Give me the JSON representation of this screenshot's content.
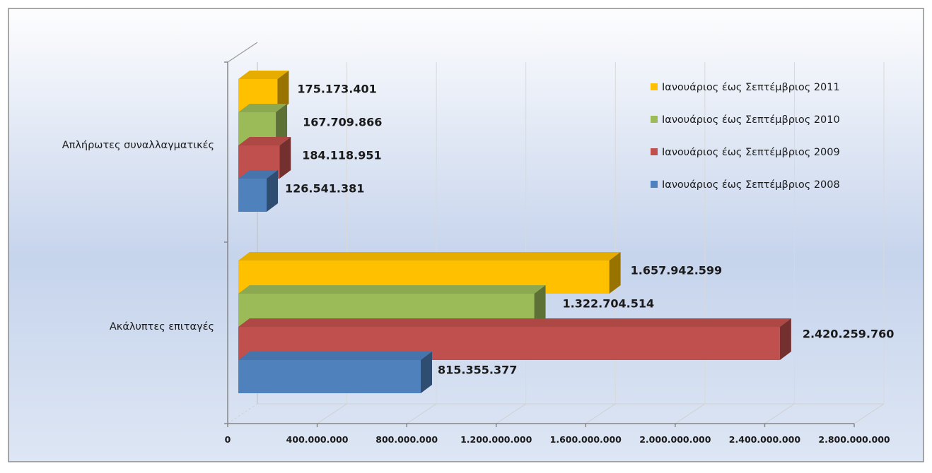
{
  "chart_data": {
    "type": "bar",
    "orientation": "horizontal",
    "three_d": true,
    "categories": [
      "Απλήρωτες συναλλαγματικές",
      "Ακάλυπτες επιταγές"
    ],
    "series": [
      {
        "name": "Ιανουάριος έως Σεπτέμβριος 2008",
        "color": "#4f81bd",
        "values": [
          126541381,
          815355377
        ],
        "labels": [
          "126.541.381",
          "815.355.377"
        ]
      },
      {
        "name": "Ιανουάριος έως Σεπτέμβριος 2009",
        "color": "#c0504d",
        "values": [
          184118951,
          2420259760
        ],
        "labels": [
          "184.118.951",
          "2.420.259.760"
        ]
      },
      {
        "name": "Ιανουάριος έως Σεπτέμβριος 2010",
        "color": "#9bbb59",
        "values": [
          167709866,
          1322704514
        ],
        "labels": [
          "167.709.866",
          "1.322.704.514"
        ]
      },
      {
        "name": "Ιανουάριος έως Σεπτέμβριος 2011",
        "color": "#ffc000",
        "values": [
          175173401,
          1657942599
        ],
        "labels": [
          "175.173.401",
          "1.657.942.599"
        ]
      }
    ],
    "xlim": [
      0,
      2800000000
    ],
    "x_ticks": [
      {
        "value": 0,
        "label": "0"
      },
      {
        "value": 400000000,
        "label": "400.000.000"
      },
      {
        "value": 800000000,
        "label": "800.000.000"
      },
      {
        "value": 1200000000,
        "label": "1.200.000.000"
      },
      {
        "value": 1600000000,
        "label": "1.600.000.000"
      },
      {
        "value": 2000000000,
        "label": "2.000.000.000"
      },
      {
        "value": 2400000000,
        "label": "2.400.000.000"
      },
      {
        "value": 2800000000,
        "label": "2.800.000.000"
      }
    ],
    "grid": true,
    "legend_position": "top-right",
    "legend_order": [
      3,
      2,
      1,
      0
    ]
  }
}
